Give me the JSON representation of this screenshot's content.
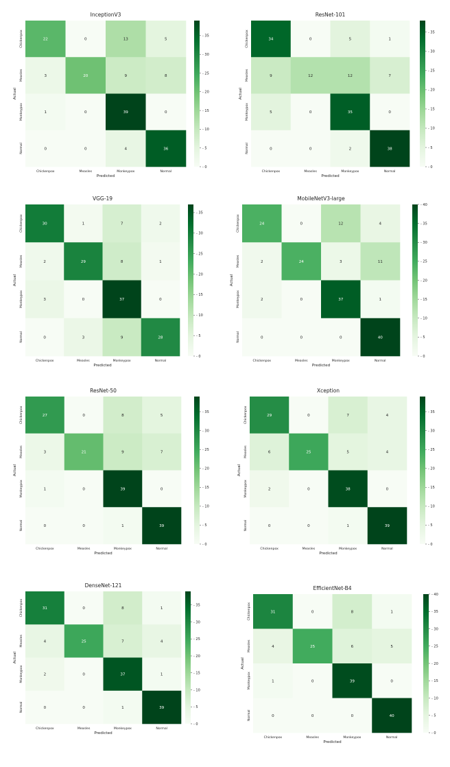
{
  "chart_data": [
    {
      "type": "heatmap",
      "title": "InceptionV3",
      "x_categories": [
        "Chickenpox",
        "Measles",
        "Monkeypox",
        "Normal"
      ],
      "y_categories": [
        "Chickenpox",
        "Measles",
        "Monkeypox",
        "Normal"
      ],
      "values": [
        [
          22,
          0,
          13,
          5
        ],
        [
          3,
          20,
          9,
          8
        ],
        [
          1,
          0,
          39,
          0
        ],
        [
          0,
          0,
          4,
          36
        ]
      ],
      "xlabel": "Predicted",
      "ylabel": "Actual",
      "colorbar": {
        "min": 0,
        "max": 39,
        "ticks": [
          0,
          5,
          10,
          15,
          20,
          25,
          30,
          35
        ]
      }
    },
    {
      "type": "heatmap",
      "title": "ResNet-101",
      "x_categories": [
        "Chickenpox",
        "Measles",
        "Monkeypox",
        "Normal"
      ],
      "y_categories": [
        "Chickenpox",
        "Measles",
        "Monkeypox",
        "Normal"
      ],
      "values": [
        [
          34,
          0,
          5,
          1
        ],
        [
          9,
          12,
          12,
          7
        ],
        [
          5,
          0,
          35,
          0
        ],
        [
          0,
          0,
          2,
          38
        ]
      ],
      "xlabel": "Predicted",
      "ylabel": "Actual",
      "colorbar": {
        "min": 0,
        "max": 38,
        "ticks": [
          0,
          5,
          10,
          15,
          20,
          25,
          30,
          35
        ]
      }
    },
    {
      "type": "heatmap",
      "title": "VGG-19",
      "x_categories": [
        "Chickenpox",
        "Measles",
        "Monkeypox",
        "Normal"
      ],
      "y_categories": [
        "Chickenpox",
        "Measles",
        "Monkeypox",
        "Normal"
      ],
      "values": [
        [
          30,
          1,
          7,
          2
        ],
        [
          2,
          29,
          8,
          1
        ],
        [
          3,
          0,
          37,
          0
        ],
        [
          0,
          3,
          9,
          28
        ]
      ],
      "xlabel": "Predicted",
      "ylabel": "Actual",
      "colorbar": {
        "min": 0,
        "max": 37,
        "ticks": [
          0,
          5,
          10,
          15,
          20,
          25,
          30,
          35
        ]
      }
    },
    {
      "type": "heatmap",
      "title": "MobileNetV3-large",
      "x_categories": [
        "Chickenpox",
        "Measles",
        "Monkeypox",
        "Normal"
      ],
      "y_categories": [
        "Chickenpox",
        "Measles",
        "Monkeypox",
        "Normal"
      ],
      "values": [
        [
          24,
          0,
          12,
          4
        ],
        [
          2,
          24,
          3,
          11
        ],
        [
          2,
          0,
          37,
          1
        ],
        [
          0,
          0,
          0,
          40
        ]
      ],
      "xlabel": "Predicted",
      "ylabel": "Actual",
      "colorbar": {
        "min": 0,
        "max": 40,
        "ticks": [
          0,
          5,
          10,
          15,
          20,
          25,
          30,
          35,
          40
        ]
      }
    },
    {
      "type": "heatmap",
      "title": "ResNet-50",
      "x_categories": [
        "Chickenpox",
        "Measles",
        "Monkeypox",
        "Normal"
      ],
      "y_categories": [
        "Chickenpox",
        "Measles",
        "Monkeypox",
        "Normal"
      ],
      "values": [
        [
          27,
          0,
          8,
          5
        ],
        [
          3,
          21,
          9,
          7
        ],
        [
          1,
          0,
          39,
          0
        ],
        [
          0,
          0,
          1,
          39
        ]
      ],
      "xlabel": "Predicted",
      "ylabel": "Actual",
      "colorbar": {
        "min": 0,
        "max": 39,
        "ticks": [
          0,
          5,
          10,
          15,
          20,
          25,
          30,
          35
        ]
      }
    },
    {
      "type": "heatmap",
      "title": "Xception",
      "x_categories": [
        "Chickenpox",
        "Measles",
        "Monkeypox",
        "Normal"
      ],
      "y_categories": [
        "Chickenpox",
        "Measles",
        "Monkeypox",
        "Normal"
      ],
      "values": [
        [
          29,
          0,
          7,
          4
        ],
        [
          6,
          25,
          5,
          4
        ],
        [
          2,
          0,
          38,
          0
        ],
        [
          0,
          0,
          1,
          39
        ]
      ],
      "xlabel": "Predicted",
      "ylabel": "Actual",
      "colorbar": {
        "min": 0,
        "max": 39,
        "ticks": [
          0,
          5,
          10,
          15,
          20,
          25,
          30,
          35
        ]
      }
    },
    {
      "type": "heatmap",
      "title": "DenseNet-121",
      "x_categories": [
        "Chickenpox",
        "Measles",
        "Monkeypox",
        "Normal"
      ],
      "y_categories": [
        "Chickenpox",
        "Measles",
        "Monkeypox",
        "Normal"
      ],
      "values": [
        [
          31,
          0,
          8,
          1
        ],
        [
          4,
          25,
          7,
          4
        ],
        [
          2,
          0,
          37,
          1
        ],
        [
          0,
          0,
          1,
          39
        ]
      ],
      "xlabel": "Predicted",
      "ylabel": "Actual",
      "colorbar": {
        "min": 0,
        "max": 39,
        "ticks": [
          0,
          5,
          10,
          15,
          20,
          25,
          30,
          35
        ]
      }
    },
    {
      "type": "heatmap",
      "title": "EfficientNet-B4",
      "x_categories": [
        "Chickenpox",
        "Measles",
        "Monkeypox",
        "Normal"
      ],
      "y_categories": [
        "Chickenpox",
        "Measles",
        "Monkeypox",
        "Normal"
      ],
      "values": [
        [
          31,
          0,
          8,
          1
        ],
        [
          4,
          25,
          6,
          5
        ],
        [
          1,
          0,
          39,
          0
        ],
        [
          0,
          0,
          0,
          40
        ]
      ],
      "xlabel": "Predicted",
      "ylabel": "Actual",
      "colorbar": {
        "min": 0,
        "max": 40,
        "ticks": [
          0,
          5,
          10,
          15,
          20,
          25,
          30,
          35,
          40
        ]
      }
    }
  ],
  "colors": {
    "colormap": "Greens",
    "low": "#f7fcf5",
    "high": "#00441b",
    "text_light": "#ffffff",
    "text_dark": "#262626"
  }
}
